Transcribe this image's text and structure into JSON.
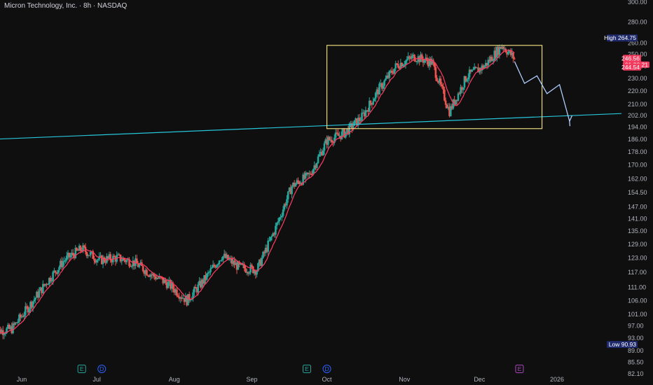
{
  "header": {
    "title": "Micron Technology, Inc. · 8h · NASDAQ"
  },
  "colors": {
    "background": "#0f0f0f",
    "up": "#26a69a",
    "down": "#ef5350",
    "ma": "#f23a5e",
    "trendline": "#26c6da",
    "rectangle": "#e8d77b",
    "projection": "#aecbfa",
    "label_bg": "#1e2a6b"
  },
  "chart_data": {
    "type": "candlestick",
    "y_axis_ticks": [
      "300.00",
      "280.00",
      "260.00",
      "250.00",
      "240.00",
      "230.00",
      "220.00",
      "210.00",
      "202.00",
      "194.00",
      "186.00",
      "178.00",
      "170.00",
      "162.00",
      "154.50",
      "147.00",
      "141.00",
      "135.00",
      "129.00",
      "123.00",
      "117.00",
      "111.00",
      "106.00",
      "101.00",
      "97.00",
      "93.00",
      "89.00",
      "85.50",
      "82.10"
    ],
    "y_scale": "log",
    "x_axis_ticks": [
      "Jun",
      "Jul",
      "Aug",
      "Sep",
      "Oct",
      "Nov",
      "Dec",
      "2026"
    ],
    "moving_average": true,
    "closes_sampled": [
      {
        "date": "2025-05-21",
        "close": 95
      },
      {
        "date": "2025-05-28",
        "close": 96
      },
      {
        "date": "2025-06-04",
        "close": 104
      },
      {
        "date": "2025-06-11",
        "close": 113
      },
      {
        "date": "2025-06-18",
        "close": 122
      },
      {
        "date": "2025-06-25",
        "close": 127
      },
      {
        "date": "2025-07-02",
        "close": 122
      },
      {
        "date": "2025-07-09",
        "close": 123
      },
      {
        "date": "2025-07-16",
        "close": 121
      },
      {
        "date": "2025-07-23",
        "close": 116
      },
      {
        "date": "2025-07-30",
        "close": 112
      },
      {
        "date": "2025-08-06",
        "close": 106
      },
      {
        "date": "2025-08-13",
        "close": 114
      },
      {
        "date": "2025-08-20",
        "close": 124
      },
      {
        "date": "2025-08-27",
        "close": 119
      },
      {
        "date": "2025-09-03",
        "close": 118
      },
      {
        "date": "2025-09-10",
        "close": 135
      },
      {
        "date": "2025-09-17",
        "close": 158
      },
      {
        "date": "2025-09-24",
        "close": 164
      },
      {
        "date": "2025-10-01",
        "close": 185
      },
      {
        "date": "2025-10-08",
        "close": 190
      },
      {
        "date": "2025-10-15",
        "close": 201
      },
      {
        "date": "2025-10-22",
        "close": 222
      },
      {
        "date": "2025-10-29",
        "close": 241
      },
      {
        "date": "2025-11-05",
        "close": 248
      },
      {
        "date": "2025-11-12",
        "close": 243
      },
      {
        "date": "2025-11-19",
        "close": 205
      },
      {
        "date": "2025-11-26",
        "close": 232
      },
      {
        "date": "2025-12-03",
        "close": 240
      },
      {
        "date": "2025-12-10",
        "close": 258
      },
      {
        "date": "2025-12-15",
        "close": 246.56
      }
    ],
    "trendline": {
      "start": {
        "date": "2025-05-21",
        "price": 186
      },
      "end": {
        "date": "2026-01-07",
        "price": 202
      }
    },
    "range_box": {
      "from": "2025-10-01",
      "to": "2025-12-26",
      "top": 258,
      "bottom": 193
    },
    "projection_path": [
      {
        "date": "2025-12-15",
        "price": 244
      },
      {
        "date": "2025-12-19",
        "price": 226
      },
      {
        "date": "2025-12-24",
        "price": 232
      },
      {
        "date": "2025-12-28",
        "price": 218
      },
      {
        "date": "2026-01-02",
        "price": 225
      },
      {
        "date": "2026-01-06",
        "price": 198
      },
      {
        "date": "2026-01-07",
        "price": 202
      }
    ],
    "high": {
      "label": "High",
      "value": "264.75"
    },
    "low": {
      "label": "Low",
      "value": "90.93"
    },
    "last_price": {
      "value": "246.56",
      "countdown": "01:38:21"
    },
    "ma_value": "244.54",
    "events": [
      {
        "label": "E",
        "date": "2025-06-25",
        "color": "#26a69a"
      },
      {
        "label": "D",
        "date": "2025-07-03",
        "color": "#2962ff"
      },
      {
        "label": "E",
        "date": "2025-09-23",
        "color": "#26a69a"
      },
      {
        "label": "D",
        "date": "2025-10-01",
        "color": "#2962ff"
      },
      {
        "label": "E",
        "date": "2025-12-17",
        "color": "#ab47bc"
      }
    ]
  }
}
